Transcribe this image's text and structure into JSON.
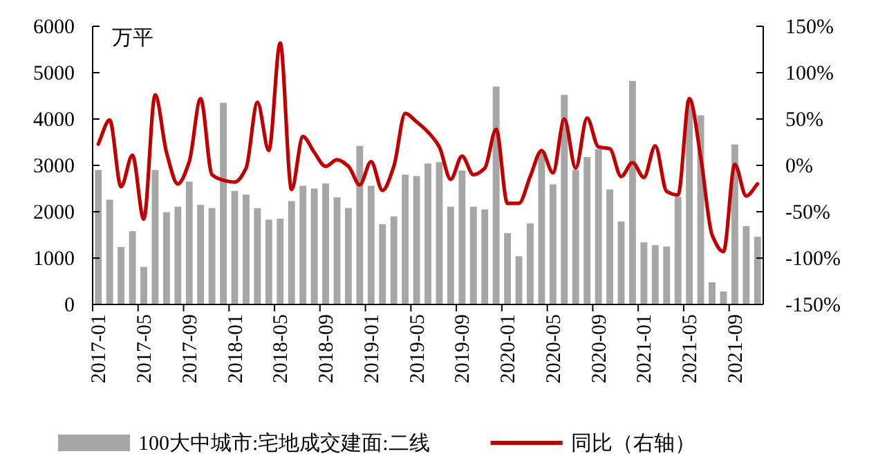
{
  "chart_data": {
    "type": "bar",
    "ylabel": "万平",
    "legend": "bottom",
    "categories": [
      "2017-01",
      null,
      null,
      null,
      "2017-05",
      null,
      null,
      null,
      "2017-09",
      null,
      null,
      null,
      "2018-01",
      null,
      null,
      null,
      "2018-05",
      null,
      null,
      null,
      "2018-09",
      null,
      null,
      null,
      "2019-01",
      null,
      null,
      null,
      "2019-05",
      null,
      null,
      null,
      "2019-09",
      null,
      null,
      null,
      "2020-01",
      null,
      null,
      null,
      "2020-05",
      null,
      null,
      null,
      "2020-09",
      null,
      null,
      null,
      "2021-01",
      null,
      null,
      null,
      "2021-05",
      null,
      null,
      null,
      "2021-09",
      null,
      null
    ],
    "series": [
      {
        "name": "100大中城市:宅地成交建面:二线",
        "color": "#a6a6a6",
        "values": [
          2900,
          2260,
          1240,
          1580,
          810,
          2900,
          1990,
          2110,
          2650,
          2150,
          2080,
          4350,
          2450,
          2370,
          2080,
          1830,
          1850,
          2230,
          2560,
          2500,
          2610,
          2310,
          2080,
          3420,
          2560,
          1730,
          1900,
          2800,
          2770,
          3040,
          3070,
          2110,
          2890,
          2110,
          2050,
          4700,
          1540,
          1040,
          1750,
          3300,
          2590,
          4520,
          2900,
          3180,
          3350,
          2480,
          1790,
          4820,
          1340,
          1280,
          1250,
          2320,
          4400,
          4080,
          480,
          280,
          3450,
          1690,
          1460
        ]
      },
      {
        "name": "同比（右轴）",
        "type": "line",
        "axis": "y2",
        "color": "#c00000",
        "values": [
          23,
          49,
          -23,
          11,
          -58,
          76,
          14,
          -20,
          4,
          72,
          -10,
          -16,
          -18,
          -3,
          68,
          16,
          132,
          -26,
          31,
          14,
          -1,
          6,
          -1,
          -21,
          4,
          -27,
          -1,
          56,
          47,
          36,
          20,
          -15,
          10,
          -10,
          -3,
          39,
          -41,
          -41,
          -12,
          16,
          -8,
          50,
          -3,
          51,
          20,
          18,
          -12,
          3,
          -13,
          21,
          -28,
          -32,
          72,
          9,
          -75,
          -93,
          1,
          -33,
          -20
        ]
      }
    ],
    "ylim": [
      0,
      6000
    ],
    "yticks": [
      0,
      1000,
      2000,
      3000,
      4000,
      5000,
      6000
    ],
    "y2lim": [
      -150,
      150
    ],
    "y2ticks": [
      {
        "value": -150,
        "label": "-150%"
      },
      {
        "value": -100,
        "label": "-100%"
      },
      {
        "value": -50,
        "label": "-50%"
      },
      {
        "value": 0,
        "label": "0%"
      },
      {
        "value": 50,
        "label": "50%"
      },
      {
        "value": 100,
        "label": "100%"
      },
      {
        "value": 150,
        "label": "150%"
      }
    ]
  }
}
